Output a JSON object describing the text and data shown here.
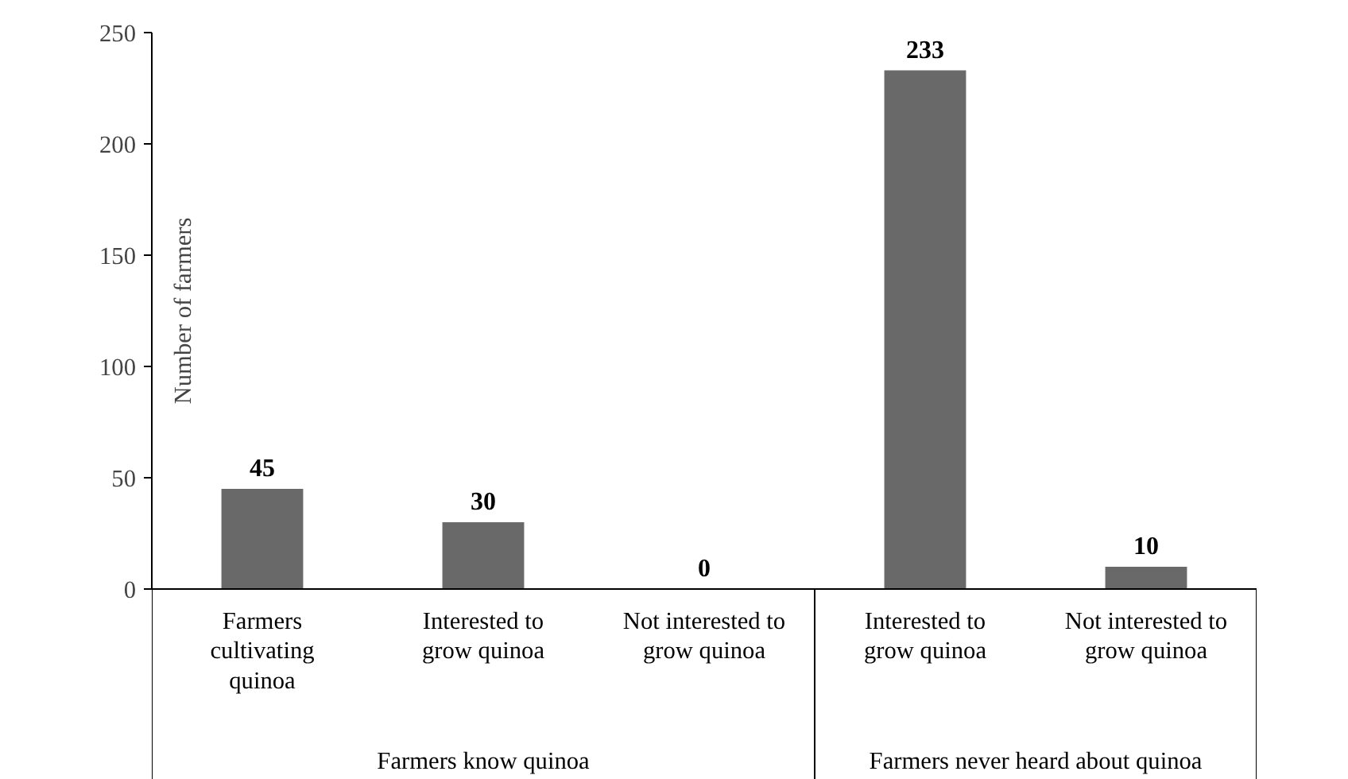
{
  "chart_data": {
    "type": "bar",
    "ylabel": "Number of farmers",
    "categories": [
      "Farmers cultivating quinoa",
      "Interested to grow quinoa",
      "Not interested to grow quinoa",
      "Interested to grow quinoa",
      "Not interested to grow quinoa"
    ],
    "values": [
      45,
      30,
      0,
      233,
      10
    ],
    "color": "#696969",
    "ylim": [
      0,
      250
    ],
    "yticks": [
      0,
      50,
      100,
      150,
      200,
      250
    ],
    "grid": false,
    "data_labels": true,
    "annotations": [
      "Farmers know quinoa",
      "Farmers never heard about quinoa"
    ]
  }
}
